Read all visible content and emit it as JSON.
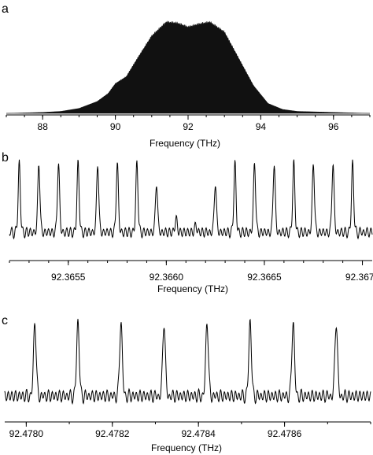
{
  "colors": {
    "ink": "#000000",
    "background": "#ffffff",
    "fill": "#111111"
  },
  "chart_data": [
    {
      "type": "area",
      "panel_label": "a",
      "xlabel": "Frequency (THz)",
      "ylabel": "",
      "xlim": [
        87,
        97
      ],
      "xticks": [
        "88",
        "90",
        "92",
        "94",
        "96"
      ],
      "x": [
        87.0,
        88.0,
        88.5,
        89.0,
        89.5,
        89.8,
        90.0,
        90.3,
        90.6,
        91.0,
        91.4,
        91.7,
        92.0,
        92.3,
        92.6,
        93.0,
        93.4,
        93.8,
        94.2,
        94.6,
        95.0,
        96.0,
        97.0
      ],
      "values": [
        0.0,
        0.01,
        0.02,
        0.05,
        0.12,
        0.2,
        0.3,
        0.37,
        0.55,
        0.78,
        0.92,
        0.91,
        0.87,
        0.9,
        0.92,
        0.82,
        0.55,
        0.28,
        0.1,
        0.04,
        0.02,
        0.01,
        0.0
      ]
    },
    {
      "type": "line",
      "panel_label": "b",
      "xlabel": "Frequency (THz)",
      "ylabel": "",
      "xlim": [
        92.3652,
        92.36705
      ],
      "xticks": [
        "92.3655",
        "92.3660",
        "92.3665",
        "92.3670"
      ],
      "peak_positions": [
        92.36525,
        92.36535,
        92.36545,
        92.36555,
        92.36565,
        92.36575,
        92.36585,
        92.36595,
        92.36605,
        92.36615,
        92.36625,
        92.36635,
        92.36645,
        92.36655,
        92.36665,
        92.36675,
        92.36685,
        92.36695
      ],
      "peak_heights": [
        1.0,
        1.0,
        1.0,
        1.0,
        1.0,
        1.0,
        1.0,
        0.72,
        0.2,
        0.1,
        0.72,
        1.0,
        1.0,
        1.0,
        1.0,
        1.0,
        1.0,
        1.0
      ]
    },
    {
      "type": "line",
      "panel_label": "c",
      "xlabel": "Frequency (THz)",
      "ylabel": "",
      "xlim": [
        92.47795,
        92.4788
      ],
      "xticks": [
        "92.4780",
        "92.4782",
        "92.4784",
        "92.4786"
      ],
      "peak_positions": [
        92.47802,
        92.47812,
        92.47822,
        92.47832,
        92.47842,
        92.47852,
        92.47862,
        92.47872
      ],
      "peak_heights": [
        1.0,
        1.0,
        1.0,
        1.0,
        1.0,
        1.0,
        1.0,
        1.0
      ]
    }
  ]
}
